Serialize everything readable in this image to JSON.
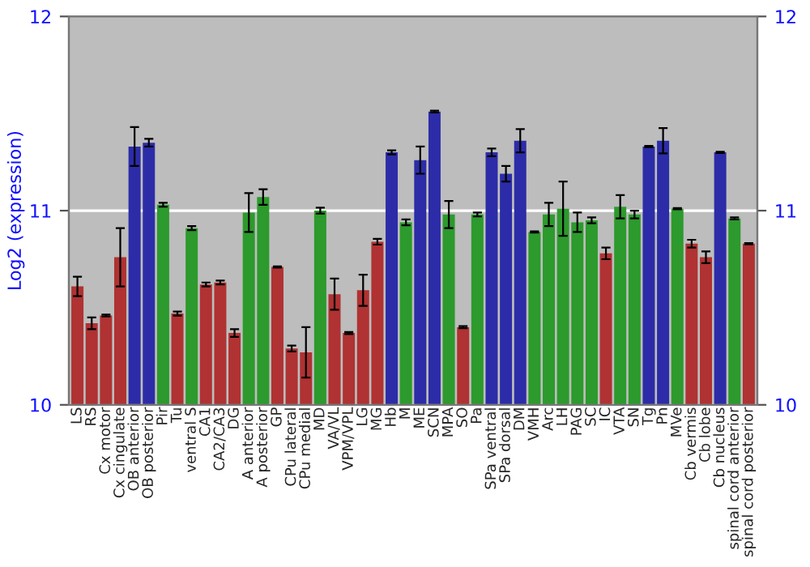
{
  "chart_data": {
    "type": "bar",
    "ylabel": "Log2 (expression)",
    "categories": [
      "LS",
      "RS",
      "Cx motor",
      "Cx cingulate",
      "OB anterior",
      "OB posterior",
      "Pir",
      "Tu",
      "ventral S",
      "CA1",
      "CA2/CA3",
      "DG",
      "A anterior",
      "A posterior",
      "GP",
      "CPu lateral",
      "CPu medial",
      "MD",
      "VA/VL",
      "VPM/VPL",
      "LG",
      "MG",
      "Hb",
      "M",
      "ME",
      "SCN",
      "MPA",
      "SO",
      "Pa",
      "SPa ventral",
      "SPa dorsal",
      "DM",
      "VMH",
      "Arc",
      "LH",
      "PAG",
      "SC",
      "IC",
      "VTA",
      "SN",
      "Tg",
      "Pn",
      "MVe",
      "Cb vermis",
      "Cb lobe",
      "Cb nucleus",
      "spinal cord anterior",
      "spinal cord posterior"
    ],
    "values": [
      10.61,
      10.42,
      10.46,
      10.76,
      11.33,
      11.35,
      11.03,
      10.47,
      10.91,
      10.62,
      10.63,
      10.37,
      10.99,
      11.07,
      10.71,
      10.29,
      10.27,
      11.0,
      10.57,
      10.37,
      10.59,
      10.84,
      11.3,
      10.94,
      11.26,
      11.51,
      10.98,
      10.4,
      10.98,
      11.3,
      11.19,
      11.36,
      10.89,
      10.98,
      11.01,
      10.94,
      10.95,
      10.78,
      11.02,
      10.98,
      11.33,
      11.36,
      11.01,
      10.83,
      10.76,
      11.3,
      10.96,
      10.83
    ],
    "errors": [
      0.05,
      0.03,
      0.005,
      0.15,
      0.1,
      0.02,
      0.01,
      0.01,
      0.01,
      0.01,
      0.01,
      0.02,
      0.1,
      0.04,
      0.003,
      0.015,
      0.13,
      0.015,
      0.08,
      0.005,
      0.08,
      0.015,
      0.01,
      0.015,
      0.07,
      0.005,
      0.07,
      0.005,
      0.01,
      0.02,
      0.04,
      0.06,
      0.003,
      0.06,
      0.14,
      0.05,
      0.015,
      0.03,
      0.06,
      0.02,
      0.003,
      0.065,
      0.003,
      0.02,
      0.03,
      0.003,
      0.005,
      0.003
    ],
    "colors": [
      "#b03232",
      "#b03232",
      "#b03232",
      "#b03232",
      "#2c2ca8",
      "#2c2ca8",
      "#2c9a2c",
      "#b03232",
      "#2c9a2c",
      "#b03232",
      "#b03232",
      "#b03232",
      "#2c9a2c",
      "#2c9a2c",
      "#b03232",
      "#b03232",
      "#b03232",
      "#2c9a2c",
      "#b03232",
      "#b03232",
      "#b03232",
      "#b03232",
      "#2c2ca8",
      "#2c9a2c",
      "#2c2ca8",
      "#2c2ca8",
      "#2c9a2c",
      "#b03232",
      "#2c9a2c",
      "#2c2ca8",
      "#2c2ca8",
      "#2c2ca8",
      "#2c9a2c",
      "#2c9a2c",
      "#2c9a2c",
      "#2c9a2c",
      "#2c9a2c",
      "#b03232",
      "#2c9a2c",
      "#2c9a2c",
      "#2c2ca8",
      "#2c2ca8",
      "#2c9a2c",
      "#b03232",
      "#b03232",
      "#2c2ca8",
      "#2c9a2c",
      "#b03232"
    ],
    "ylim": [
      10,
      12
    ],
    "yticks": [
      10,
      11,
      12
    ],
    "y2lim": [
      10,
      12
    ],
    "y2ticks": [
      10,
      11,
      12
    ],
    "grid": "y"
  }
}
